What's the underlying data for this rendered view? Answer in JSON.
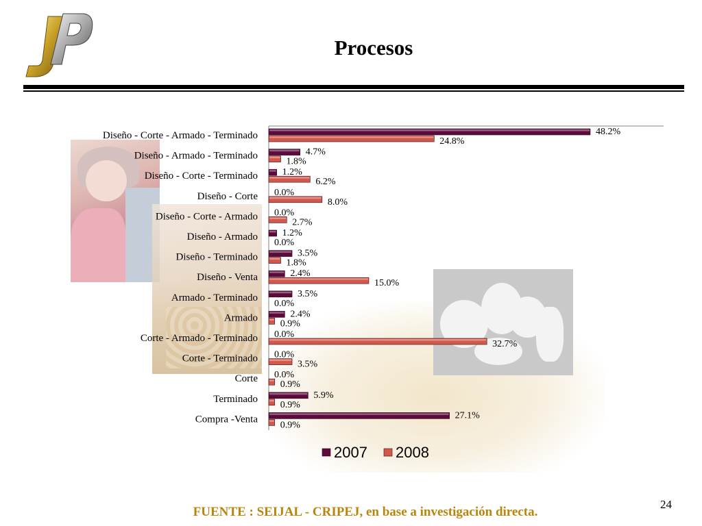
{
  "slide": {
    "title": "Procesos",
    "page_number": "24",
    "source": "FUENTE :  SEIJAL - CRIPEJ,  en base a investigación directa."
  },
  "colors": {
    "series_2007": "#5c0a3c",
    "series_2008": "#d2584a",
    "source_text": "#b8860b"
  },
  "chart_data": {
    "type": "bar",
    "orientation": "horizontal",
    "categories": [
      "Diseño - Corte - Armado - Terminado",
      "Diseño -  Armado - Terminado",
      "Diseño -  Corte - Terminado",
      "Diseño -  Corte",
      "Diseño -  Corte  - Armado",
      "Diseño -  Armado",
      "Diseño - Terminado",
      "Diseño - Venta",
      "Armado - Terminado",
      "Armado",
      "Corte - Armado - Terminado",
      "Corte - Terminado",
      "Corte",
      "Terminado",
      "Compra -Venta"
    ],
    "series": [
      {
        "name": "2007",
        "values": [
          48.2,
          4.7,
          1.2,
          0.0,
          0.0,
          1.2,
          3.5,
          2.4,
          3.5,
          2.4,
          0.0,
          0.0,
          0.0,
          5.9,
          27.1
        ],
        "labels": [
          "48.2%",
          "4.7%",
          "1.2%",
          "0.0%",
          "0.0%",
          "1.2%",
          "3.5%",
          "2.4%",
          "3.5%",
          "2.4%",
          "0.0%",
          "0.0%",
          "0.0%",
          "5.9%",
          "27.1%"
        ]
      },
      {
        "name": "2008",
        "values": [
          24.8,
          1.8,
          6.2,
          8.0,
          2.7,
          0.0,
          1.8,
          15.0,
          0.0,
          0.9,
          32.7,
          3.5,
          0.9,
          0.9,
          0.9
        ],
        "labels": [
          "24.8%",
          "1.8%",
          "6.2%",
          "8.0%",
          "2.7%",
          "0.0%",
          "1.8%",
          "15.0%",
          "0.0%",
          "0.9%",
          "32.7%",
          "3.5%",
          "0.9%",
          "0.9%",
          "0.9%"
        ]
      }
    ],
    "xlim": [
      0,
      55
    ],
    "grid": false,
    "legend": "bottom"
  }
}
